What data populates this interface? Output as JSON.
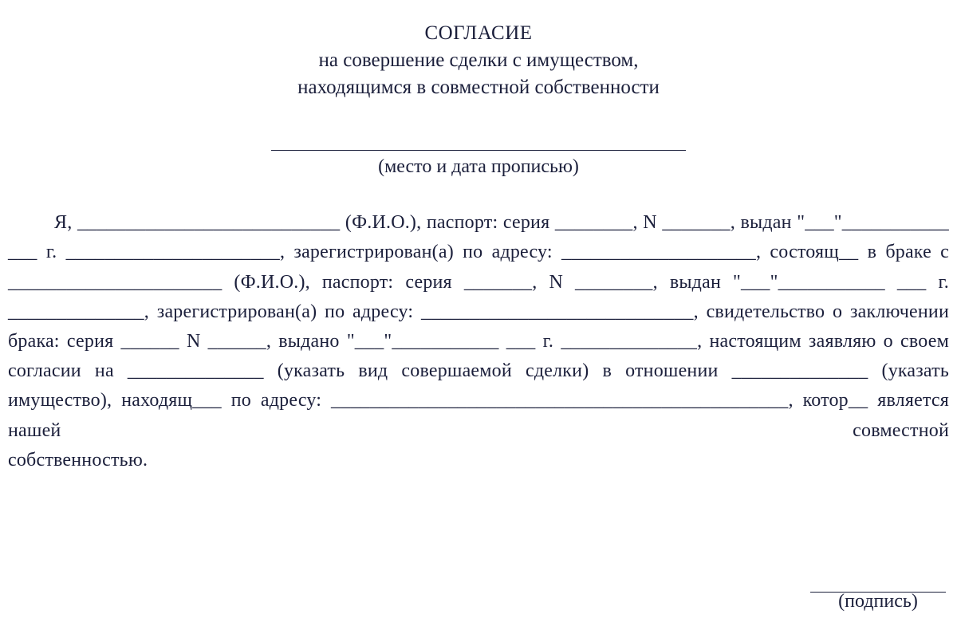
{
  "colors": {
    "text": "#1b1f3b",
    "background": "#ffffff",
    "rule": "#1b1f3b"
  },
  "typography": {
    "font_family": "Times New Roman",
    "title_fontsize_pt": 19,
    "body_fontsize_pt": 18,
    "line_height": 1.55
  },
  "title": {
    "line1": "СОГЛАСИЕ",
    "line2": "на совершение сделки с имуществом,",
    "line3": "находящимся в совместной собственности"
  },
  "place_date": {
    "caption": "(место и дата прописью)"
  },
  "body": "Я, ___________________________ (Ф.И.О.), паспорт: серия ________, N _______, выдан \"___\"___________ ___ г. ______________________, зарегистрирован(а) по адресу: ____________________, состоящ__ в браке с ______________________ (Ф.И.О.), паспорт: серия _______, N ________, выдан \"___\"___________ ___ г. ______________, зарегистрирован(а) по адресу: ____________________________, свидетельство о заключении брака: серия ______ N ______, выдано \"___\"___________ ___ г. ______________, настоящим заявляю о своем согласии на ______________ (указать вид совершаемой сделки) в отношении ______________ (указать имущество), находящ___ по адресу: _______________________________________________, котор__ является нашей совместной",
  "body_last": "собственностью.",
  "signature": {
    "caption": "(подпись)"
  }
}
